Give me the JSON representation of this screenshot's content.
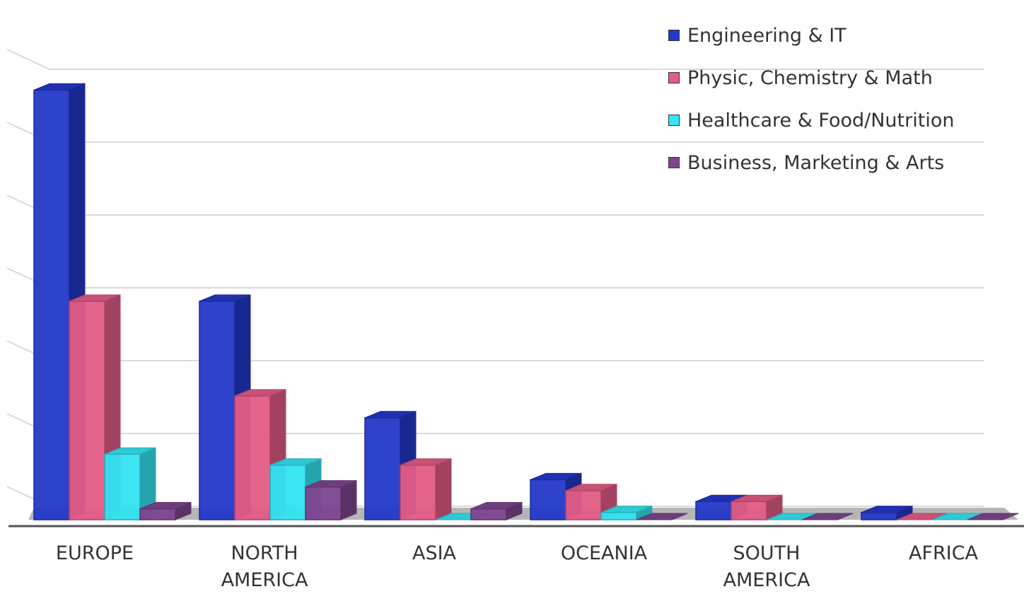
{
  "chart_data": {
    "type": "bar",
    "categories": [
      "EUROPE",
      "NORTH\nAMERICA",
      "ASIA",
      "OCEANIA",
      "SOUTH\nAMERICA",
      "AFRICA"
    ],
    "series": [
      {
        "name": "Engineering & IT",
        "color": "#2338c8",
        "values": [
          59,
          30,
          14,
          5.5,
          2.5,
          1
        ]
      },
      {
        "name": "Physic, Chemistry & Math",
        "color": "#e35c86",
        "values": [
          30,
          17,
          7.5,
          4,
          2.5,
          0
        ]
      },
      {
        "name": "Healthcare & Food/Nutrition",
        "color": "#33e4f2",
        "values": [
          9,
          7.5,
          0,
          1,
          0,
          0
        ]
      },
      {
        "name": "Business, Marketing & Arts",
        "color": "#7d4590",
        "values": [
          1.5,
          4.5,
          1.5,
          0,
          0,
          0
        ]
      }
    ],
    "ylim": [
      0,
      60
    ],
    "grid": true,
    "legend_position": "top-right",
    "style": "3d-clustered-bar"
  }
}
